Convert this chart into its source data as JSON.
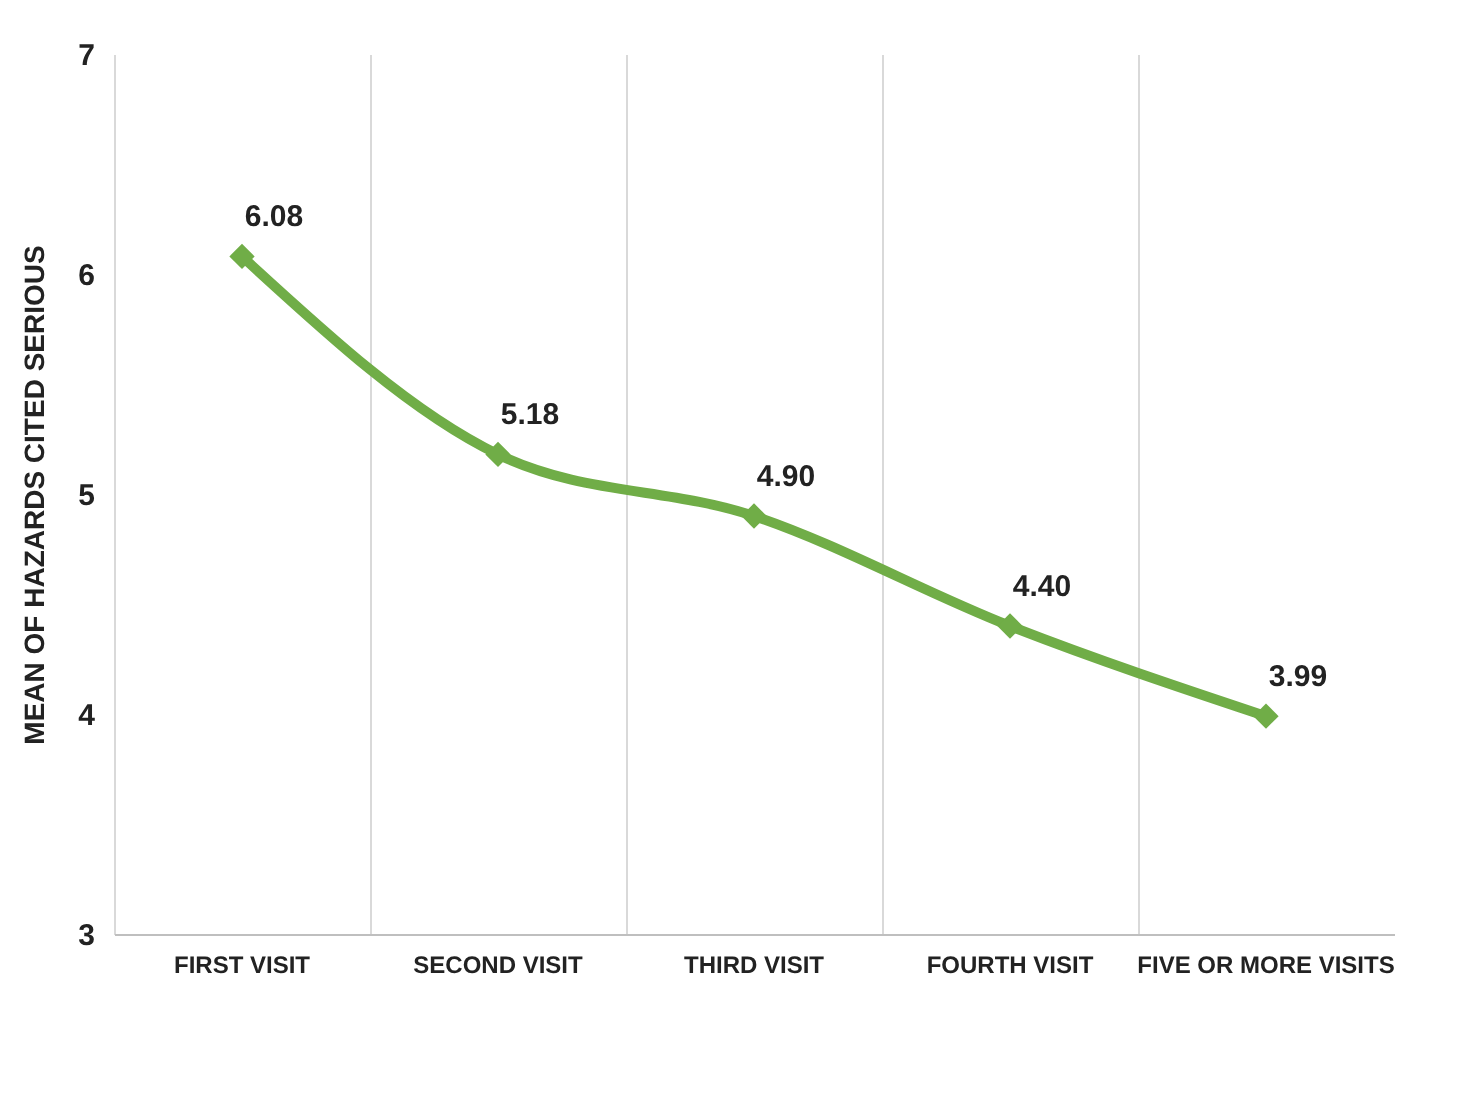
{
  "chart_data": {
    "type": "line",
    "ylabel": "MEAN OF HAZARDS CITED SERIOUS",
    "categories": [
      "FIRST VISIT",
      "SECOND VISIT",
      "THIRD VISIT",
      "FOURTH VISIT",
      "FIVE OR MORE VISITS"
    ],
    "series": [
      {
        "color": "#70ad47",
        "values": [
          6.08,
          5.18,
          4.9,
          4.4,
          3.99
        ],
        "value_labels": [
          "6.08",
          "5.18",
          "4.90",
          "4.40",
          "3.99"
        ]
      }
    ],
    "ylim": [
      3,
      7
    ],
    "yticks": [
      3,
      4,
      5,
      6,
      7
    ],
    "grid": "x",
    "marker": "diamond",
    "line_style": "solid"
  }
}
